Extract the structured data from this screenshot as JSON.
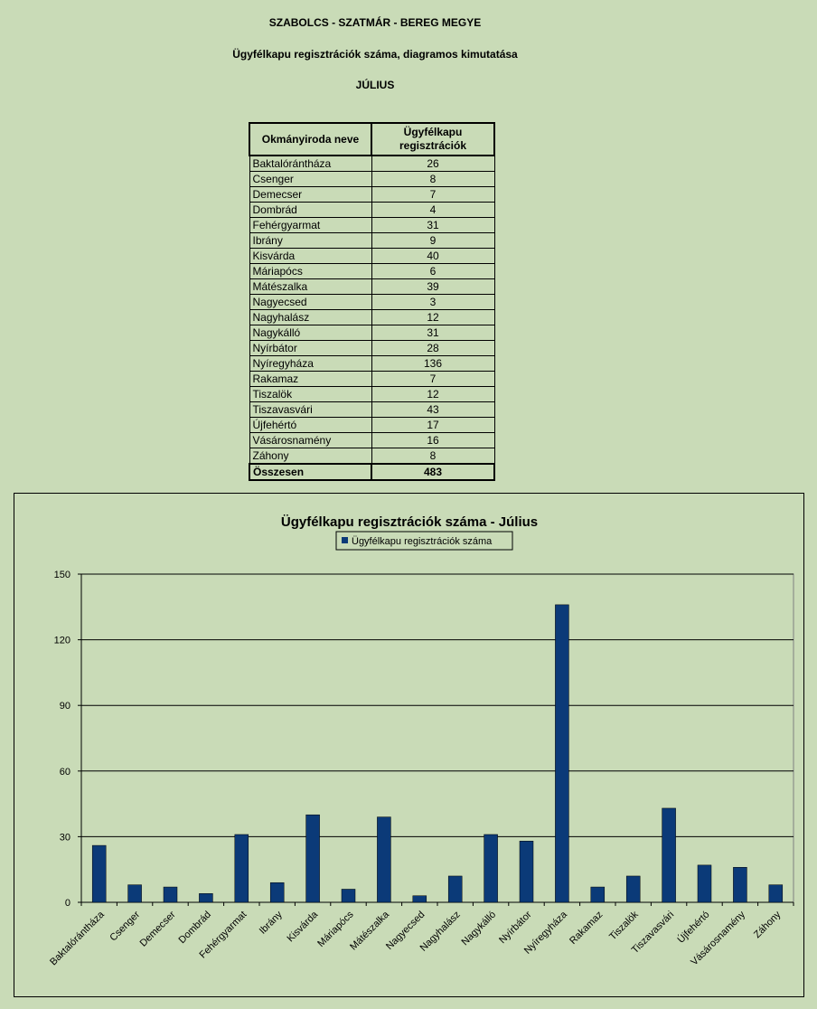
{
  "header": {
    "county": "SZABOLCS - SZATMÁR - BEREG MEGYE",
    "subtitle": "Ügyfélkapu regisztrációk száma, diagramos kimutatása",
    "month": "JÚLIUS"
  },
  "table": {
    "col1": "Okmányiroda neve",
    "col2": "Ügyfélkapu regisztrációk",
    "rows": [
      {
        "name": "Baktalórántháza",
        "value": "26"
      },
      {
        "name": "Csenger",
        "value": "8"
      },
      {
        "name": "Demecser",
        "value": "7"
      },
      {
        "name": "Dombrád",
        "value": "4"
      },
      {
        "name": "Fehérgyarmat",
        "value": "31"
      },
      {
        "name": "Ibrány",
        "value": "9"
      },
      {
        "name": "Kisvárda",
        "value": "40"
      },
      {
        "name": "Máriapócs",
        "value": "6"
      },
      {
        "name": "Mátészalka",
        "value": "39"
      },
      {
        "name": "Nagyecsed",
        "value": "3"
      },
      {
        "name": "Nagyhalász",
        "value": "12"
      },
      {
        "name": "Nagykálló",
        "value": "31"
      },
      {
        "name": "Nyírbátor",
        "value": "28"
      },
      {
        "name": "Nyíregyháza",
        "value": "136"
      },
      {
        "name": "Rakamaz",
        "value": "7"
      },
      {
        "name": "Tiszalök",
        "value": "12"
      },
      {
        "name": "Tiszavasvári",
        "value": "43"
      },
      {
        "name": "Újfehértó",
        "value": "17"
      },
      {
        "name": "Vásárosnamény",
        "value": "16"
      },
      {
        "name": "Záhony",
        "value": "8"
      }
    ],
    "total_label": "Összesen",
    "total_value": "483"
  },
  "chart_data": {
    "type": "bar",
    "title": "Ügyfélkapu regisztrációk száma - Július",
    "categories": [
      "Baktalórántháza",
      "Csenger",
      "Demecser",
      "Dombrád",
      "Fehérgyarmat",
      "Ibrány",
      "Kisvárda",
      "Máriapócs",
      "Mátészalka",
      "Nagyecsed",
      "Nagyhalász",
      "Nagykálló",
      "Nyírbátor",
      "Nyíregyháza",
      "Rakamaz",
      "Tiszalök",
      "Tiszavasvári",
      "Újfehértó",
      "Vásárosnamény",
      "Záhony"
    ],
    "series": [
      {
        "name": "Ügyfélkapu regisztrációk száma",
        "values": [
          26,
          8,
          7,
          4,
          31,
          9,
          40,
          6,
          39,
          3,
          12,
          31,
          28,
          136,
          7,
          12,
          43,
          17,
          16,
          8
        ]
      }
    ],
    "ylim": [
      0,
      150
    ],
    "yticks": [
      0,
      30,
      60,
      90,
      120,
      150
    ],
    "grid": true,
    "legend": "top-center",
    "colors": {
      "bar": "#0b3a78",
      "background": "#c9dbb7"
    }
  }
}
